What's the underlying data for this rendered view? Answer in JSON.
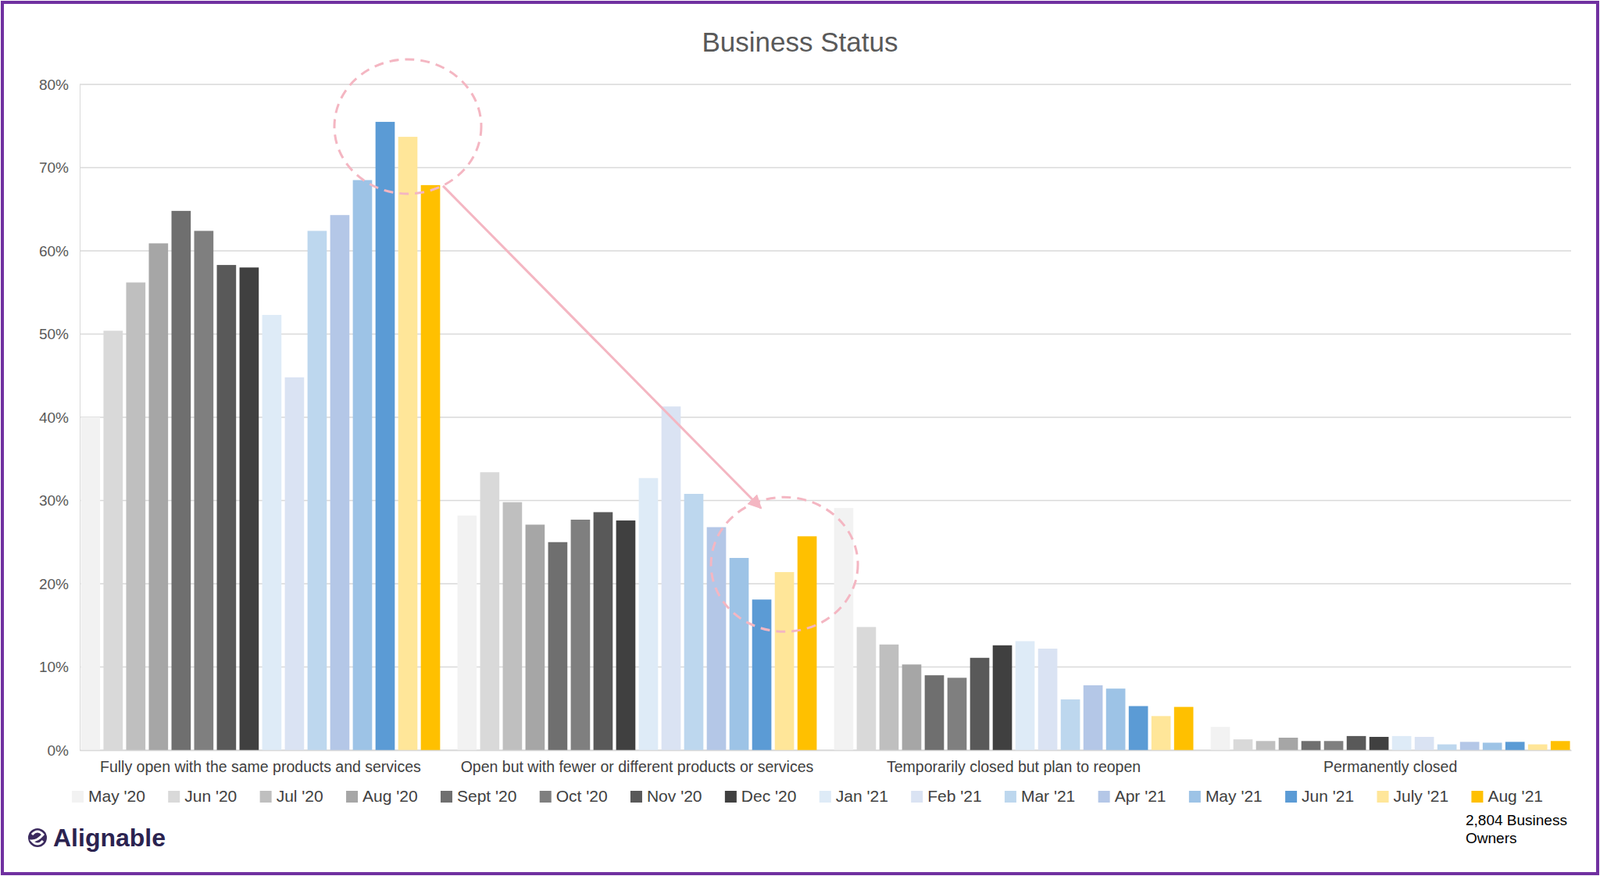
{
  "chart_data": {
    "type": "bar",
    "title": "Business Status",
    "categories": [
      "Fully open with the same products and services",
      "Open but with fewer or different products or services",
      "Temporarily closed but plan to reopen",
      "Permanently closed"
    ],
    "series": [
      {
        "name": "May '20",
        "color": "#f2f2f2",
        "values": [
          40.0,
          28.2,
          29.1,
          2.8
        ]
      },
      {
        "name": "Jun '20",
        "color": "#d9d9d9",
        "values": [
          50.4,
          33.4,
          14.8,
          1.3
        ]
      },
      {
        "name": "Jul '20",
        "color": "#bfbfbf",
        "values": [
          56.2,
          29.8,
          12.7,
          1.1
        ]
      },
      {
        "name": "Aug '20",
        "color": "#a6a6a6",
        "values": [
          60.9,
          27.1,
          10.3,
          1.5
        ]
      },
      {
        "name": "Sept '20",
        "color": "#6f6f6f",
        "values": [
          64.8,
          25.0,
          9.0,
          1.1
        ]
      },
      {
        "name": "Oct '20",
        "color": "#7f7f7f",
        "values": [
          62.4,
          27.7,
          8.7,
          1.1
        ]
      },
      {
        "name": "Nov '20",
        "color": "#595959",
        "values": [
          58.3,
          28.6,
          11.1,
          1.7
        ]
      },
      {
        "name": "Dec '20",
        "color": "#404040",
        "values": [
          58.0,
          27.6,
          12.6,
          1.6
        ]
      },
      {
        "name": "Jan '21",
        "color": "#deebf7",
        "values": [
          52.3,
          32.7,
          13.1,
          1.7
        ]
      },
      {
        "name": "Feb '21",
        "color": "#dae3f3",
        "values": [
          44.8,
          41.3,
          12.2,
          1.6
        ]
      },
      {
        "name": "Mar '21",
        "color": "#bdd7ee",
        "values": [
          62.4,
          30.8,
          6.1,
          0.7
        ]
      },
      {
        "name": "Apr '21",
        "color": "#b4c7e7",
        "values": [
          64.3,
          26.8,
          7.8,
          1.0
        ]
      },
      {
        "name": "May '21",
        "color": "#9dc3e6",
        "values": [
          68.5,
          23.1,
          7.4,
          0.9
        ]
      },
      {
        "name": "Jun '21",
        "color": "#5b9bd5",
        "values": [
          75.5,
          18.1,
          5.3,
          1.0
        ]
      },
      {
        "name": "July '21",
        "color": "#ffe699",
        "values": [
          73.7,
          21.4,
          4.1,
          0.7
        ]
      },
      {
        "name": "Aug '21",
        "color": "#ffc000",
        "values": [
          67.9,
          25.7,
          5.2,
          1.1
        ]
      }
    ],
    "ylim": [
      0,
      80
    ],
    "yticks": [
      {
        "value": 0,
        "label": "0%"
      },
      {
        "value": 10,
        "label": "10%"
      },
      {
        "value": 20,
        "label": "20%"
      },
      {
        "value": 30,
        "label": "30%"
      },
      {
        "value": 40,
        "label": "40%"
      },
      {
        "value": 50,
        "label": "50%"
      },
      {
        "value": 60,
        "label": "60%"
      },
      {
        "value": 70,
        "label": "70%"
      },
      {
        "value": 80,
        "label": "80%"
      }
    ],
    "grid": true,
    "legend": "bottom"
  },
  "logo": "Alignable",
  "note": "2,804 Business Owners"
}
